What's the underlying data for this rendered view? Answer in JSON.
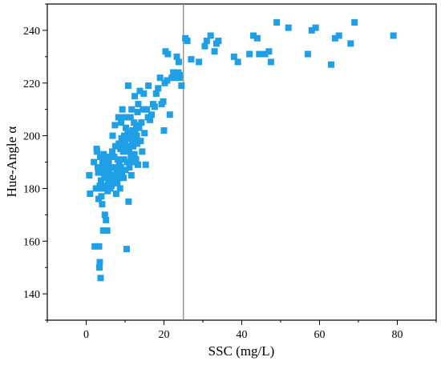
{
  "chart_data": {
    "type": "scatter",
    "xlabel": "SSC (mg/L)",
    "ylabel": "Hue-Angle α",
    "xlim": [
      -10,
      90
    ],
    "ylim": [
      130,
      250
    ],
    "xticks": [
      0,
      20,
      40,
      60,
      80
    ],
    "yticks": [
      140,
      160,
      180,
      200,
      220,
      240
    ],
    "grid": false,
    "reference_line_x": 25,
    "marker_color": "#1e9fe6",
    "marker_shape": "square",
    "series": [
      {
        "points": [
          [
            0.8,
            185
          ],
          [
            1,
            178
          ],
          [
            2,
            190
          ],
          [
            2.2,
            158
          ],
          [
            2.5,
            180
          ],
          [
            2.7,
            195
          ],
          [
            2.8,
            194
          ],
          [
            3,
            188
          ],
          [
            3.1,
            186
          ],
          [
            3.2,
            176
          ],
          [
            3.3,
            158
          ],
          [
            3.4,
            150
          ],
          [
            3.5,
            181
          ],
          [
            3.5,
            152
          ],
          [
            3.6,
            192
          ],
          [
            3.7,
            146
          ],
          [
            3.8,
            183
          ],
          [
            3.9,
            177
          ],
          [
            4,
            180
          ],
          [
            4,
            187
          ],
          [
            4.1,
            174
          ],
          [
            4.2,
            190
          ],
          [
            4.3,
            188
          ],
          [
            4.4,
            164
          ],
          [
            4.5,
            193
          ],
          [
            4.6,
            181
          ],
          [
            4.7,
            185
          ],
          [
            4.8,
            170
          ],
          [
            4.9,
            186
          ],
          [
            5,
            191
          ],
          [
            5.1,
            168
          ],
          [
            5.2,
            184
          ],
          [
            5.3,
            181
          ],
          [
            5.4,
            164
          ],
          [
            5.5,
            179
          ],
          [
            5.6,
            188
          ],
          [
            5.7,
            183
          ],
          [
            5.8,
            190
          ],
          [
            6,
            186
          ],
          [
            6.1,
            192
          ],
          [
            6.2,
            180
          ],
          [
            6.3,
            185
          ],
          [
            6.5,
            181
          ],
          [
            6.6,
            188
          ],
          [
            6.7,
            194
          ],
          [
            6.8,
            200
          ],
          [
            6.9,
            184
          ],
          [
            7,
            182
          ],
          [
            7.2,
            192
          ],
          [
            7.3,
            188
          ],
          [
            7.4,
            204
          ],
          [
            7.5,
            196
          ],
          [
            7.6,
            185
          ],
          [
            7.7,
            178
          ],
          [
            7.8,
            187
          ],
          [
            8,
            182
          ],
          [
            8.1,
            191
          ],
          [
            8.2,
            184
          ],
          [
            8.3,
            207
          ],
          [
            8.4,
            197
          ],
          [
            8.5,
            190
          ],
          [
            8.6,
            186
          ],
          [
            8.7,
            180
          ],
          [
            8.8,
            195
          ],
          [
            8.9,
            188
          ],
          [
            9,
            205
          ],
          [
            9.1,
            199
          ],
          [
            9.2,
            186
          ],
          [
            9.3,
            210
          ],
          [
            9.4,
            197
          ],
          [
            9.5,
            194
          ],
          [
            9.6,
            184
          ],
          [
            9.7,
            191
          ],
          [
            9.8,
            200
          ],
          [
            9.9,
            207
          ],
          [
            10,
            198
          ],
          [
            10.1,
            187
          ],
          [
            10.2,
            203
          ],
          [
            10.3,
            196
          ],
          [
            10.4,
            157
          ],
          [
            10.5,
            190
          ],
          [
            10.6,
            199
          ],
          [
            10.7,
            201
          ],
          [
            10.8,
            219
          ],
          [
            10.9,
            175
          ],
          [
            11,
            194
          ],
          [
            11.1,
            188
          ],
          [
            11.2,
            196
          ],
          [
            11.3,
            199
          ],
          [
            11.4,
            207
          ],
          [
            11.5,
            192
          ],
          [
            11.6,
            185
          ],
          [
            11.7,
            210
          ],
          [
            11.8,
            198
          ],
          [
            11.9,
            202
          ],
          [
            12,
            190
          ],
          [
            12.1,
            196
          ],
          [
            12.2,
            200
          ],
          [
            12.3,
            205
          ],
          [
            12.4,
            193
          ],
          [
            12.5,
            215
          ],
          [
            12.6,
            202
          ],
          [
            12.7,
            198
          ],
          [
            12.8,
            191
          ],
          [
            12.9,
            204
          ],
          [
            13,
            200
          ],
          [
            13.1,
            197
          ],
          [
            13.2,
            209
          ],
          [
            13.3,
            189
          ],
          [
            13.4,
            212
          ],
          [
            13.6,
            203
          ],
          [
            13.8,
            217
          ],
          [
            14,
            198
          ],
          [
            14.2,
            205
          ],
          [
            14.4,
            194
          ],
          [
            14.6,
            210
          ],
          [
            14.8,
            216
          ],
          [
            15,
            201
          ],
          [
            15.3,
            189
          ],
          [
            15.6,
            210
          ],
          [
            15.9,
            207
          ],
          [
            16,
            219
          ],
          [
            16.4,
            206
          ],
          [
            16.8,
            208
          ],
          [
            17.2,
            212
          ],
          [
            17.6,
            211
          ],
          [
            18,
            216
          ],
          [
            18.5,
            218
          ],
          [
            19,
            222
          ],
          [
            19.4,
            212
          ],
          [
            19.8,
            213
          ],
          [
            20,
            202
          ],
          [
            20.2,
            220
          ],
          [
            20.4,
            232
          ],
          [
            20.8,
            221
          ],
          [
            21,
            231
          ],
          [
            21.5,
            208
          ],
          [
            22,
            222
          ],
          [
            22.4,
            224
          ],
          [
            22.8,
            222
          ],
          [
            23.3,
            230
          ],
          [
            23.7,
            224
          ],
          [
            24,
            222
          ],
          [
            24.5,
            219
          ],
          [
            24,
            223
          ],
          [
            23.8,
            228
          ],
          [
            25.5,
            237
          ],
          [
            26,
            236
          ],
          [
            27,
            229
          ],
          [
            29,
            228
          ],
          [
            30.5,
            234
          ],
          [
            31,
            236
          ],
          [
            32,
            238
          ],
          [
            33,
            232
          ],
          [
            33.5,
            235
          ],
          [
            34,
            236
          ],
          [
            38,
            230
          ],
          [
            39,
            228
          ],
          [
            42,
            231
          ],
          [
            43,
            238
          ],
          [
            44,
            237
          ],
          [
            44.5,
            231
          ],
          [
            46,
            231
          ],
          [
            47,
            232
          ],
          [
            47.5,
            228
          ],
          [
            49,
            243
          ],
          [
            52,
            241
          ],
          [
            57,
            231
          ],
          [
            58,
            240
          ],
          [
            59,
            241
          ],
          [
            63,
            227
          ],
          [
            64,
            237
          ],
          [
            65,
            238
          ],
          [
            68,
            235
          ],
          [
            69,
            243
          ],
          [
            79,
            238
          ]
        ]
      }
    ]
  }
}
